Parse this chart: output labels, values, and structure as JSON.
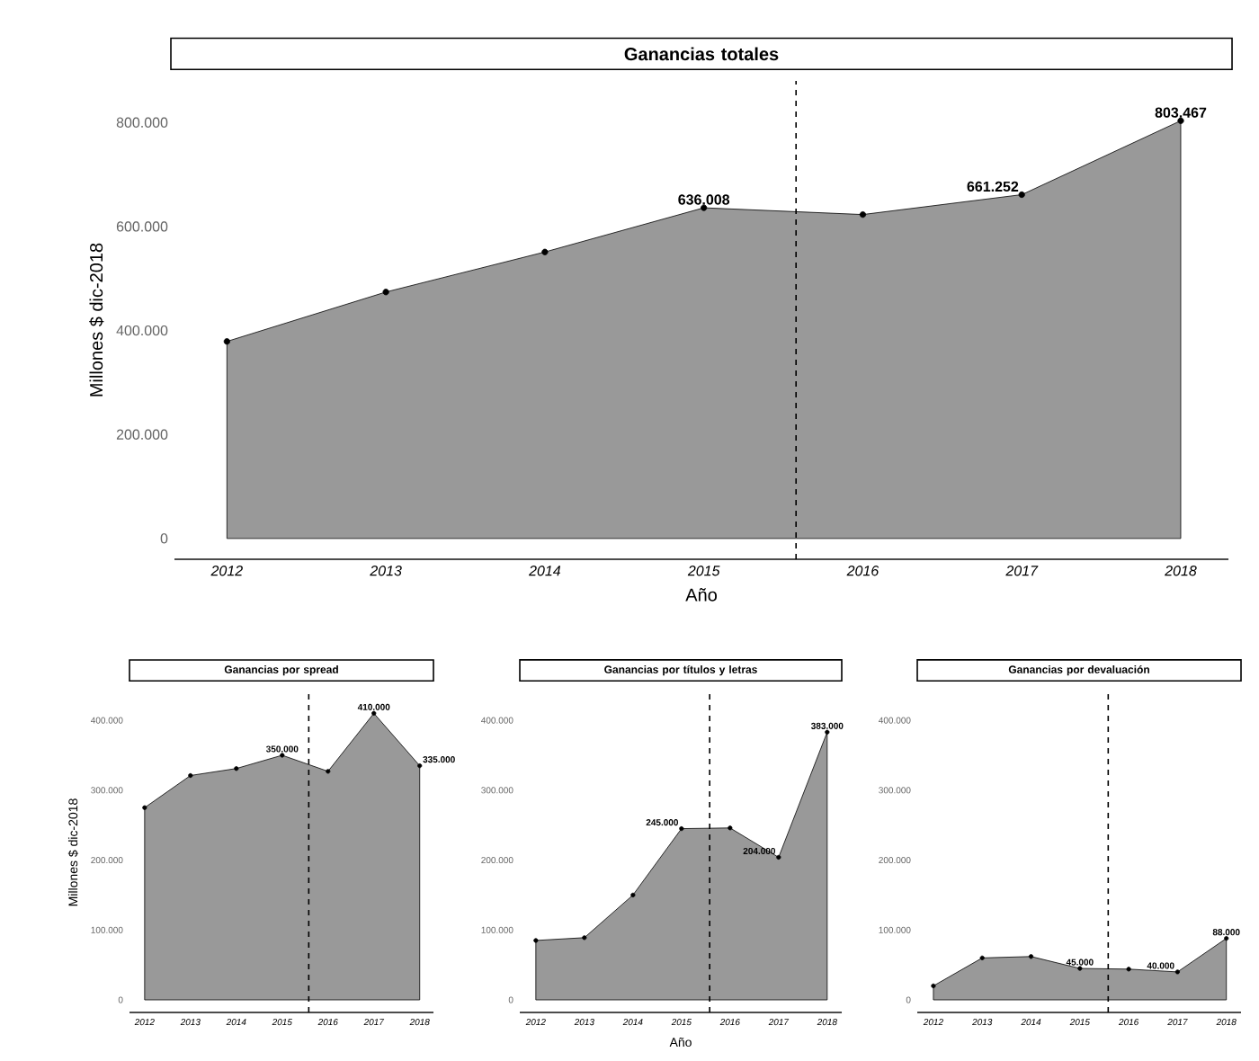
{
  "chart_data": [
    {
      "type": "area",
      "title": "Ganancias totales",
      "xlabel": "Año",
      "ylabel": "Millones $ dic-2018",
      "x": [
        2012,
        2013,
        2014,
        2015,
        2016,
        2017,
        2018
      ],
      "color": "#999999",
      "marker": "circle",
      "values": [
        379000,
        474000,
        551000,
        636008,
        623000,
        661252,
        803467
      ],
      "value_labels": [
        null,
        null,
        null,
        "636.008",
        null,
        "661.252",
        "803.467"
      ],
      "xlim": [
        2011.67,
        2018.3
      ],
      "ylim": [
        -40000,
        880000
      ],
      "xticks": [
        2012,
        2013,
        2014,
        2015,
        2016,
        2017,
        2018
      ],
      "yticks": [
        0,
        {
          "value": 200000,
          "label": "200.000"
        },
        {
          "value": 400000,
          "label": "400.000"
        },
        {
          "value": 600000,
          "label": "600.000"
        },
        {
          "value": 800000,
          "label": "800.000"
        }
      ],
      "ref_lines": [
        {
          "axis": "x",
          "value": 2015.58,
          "line_style": "dashed"
        }
      ]
    },
    {
      "type": "area",
      "title": "Ganancias por spread",
      "ylabel": "Millones $ dic-2018",
      "x": [
        2012,
        2013,
        2014,
        2015,
        2016,
        2017,
        2018
      ],
      "color": "#999999",
      "marker": "circle",
      "values": [
        275000,
        321000,
        331000,
        350000,
        327000,
        410000,
        335000
      ],
      "value_labels": [
        null,
        null,
        null,
        "350.000",
        null,
        "410.000",
        "335.000"
      ],
      "xlim": [
        2011.67,
        2018.3
      ],
      "ylim": [
        -18000,
        440000
      ],
      "xticks": [
        2012,
        2013,
        2014,
        2015,
        2016,
        2017,
        2018
      ],
      "yticks": [
        0,
        {
          "value": 100000,
          "label": "100.000"
        },
        {
          "value": 200000,
          "label": "200.000"
        },
        {
          "value": 300000,
          "label": "300.000"
        },
        {
          "value": 400000,
          "label": "400.000"
        }
      ],
      "ref_lines": [
        {
          "axis": "x",
          "value": 2015.58,
          "line_style": "dashed"
        }
      ]
    },
    {
      "type": "area",
      "title": "Ganancias por títulos y letras",
      "xlabel": "Año",
      "x": [
        2012,
        2013,
        2014,
        2015,
        2016,
        2017,
        2018
      ],
      "color": "#999999",
      "marker": "circle",
      "values": [
        85000,
        89000,
        150000,
        245000,
        246000,
        204000,
        383000
      ],
      "value_labels": [
        null,
        null,
        null,
        "245.000",
        null,
        "204.000",
        "383.000"
      ],
      "xlim": [
        2011.67,
        2018.3
      ],
      "ylim": [
        -18000,
        440000
      ],
      "xticks": [
        2012,
        2013,
        2014,
        2015,
        2016,
        2017,
        2018
      ],
      "yticks": [
        0,
        {
          "value": 100000,
          "label": "100.000"
        },
        {
          "value": 200000,
          "label": "200.000"
        },
        {
          "value": 300000,
          "label": "300.000"
        },
        {
          "value": 400000,
          "label": "400.000"
        }
      ],
      "ref_lines": [
        {
          "axis": "x",
          "value": 2015.58,
          "line_style": "dashed"
        }
      ]
    },
    {
      "type": "area",
      "title": "Ganancias por devaluación",
      "x": [
        2012,
        2013,
        2014,
        2015,
        2016,
        2017,
        2018
      ],
      "color": "#999999",
      "marker": "circle",
      "values": [
        20000,
        60000,
        62000,
        45000,
        44000,
        40000,
        88000
      ],
      "value_labels": [
        null,
        null,
        null,
        "45.000",
        null,
        "40.000",
        "88.000"
      ],
      "xlim": [
        2011.67,
        2018.3
      ],
      "ylim": [
        -18000,
        440000
      ],
      "xticks": [
        2012,
        2013,
        2014,
        2015,
        2016,
        2017,
        2018
      ],
      "yticks": [
        0,
        {
          "value": 100000,
          "label": "100.000"
        },
        {
          "value": 200000,
          "label": "200.000"
        },
        {
          "value": 300000,
          "label": "300.000"
        },
        {
          "value": 400000,
          "label": "400.000"
        }
      ],
      "ref_lines": [
        {
          "axis": "x",
          "value": 2015.58,
          "line_style": "dashed"
        }
      ]
    }
  ]
}
